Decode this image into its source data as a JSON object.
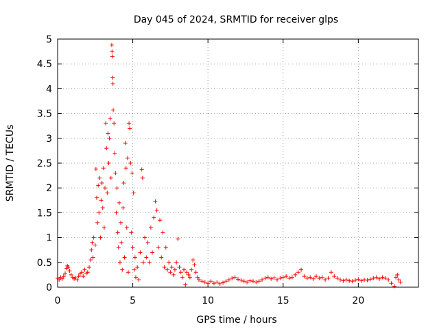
{
  "chart_data": {
    "type": "scatter",
    "title": "Day 045 of 2024, SRMTID for receiver glps",
    "xlabel": "GPS time / hours",
    "ylabel": "SRMTID / TECUs",
    "xlim": [
      0,
      24
    ],
    "ylim": [
      0,
      5
    ],
    "xticks": [
      0,
      5,
      10,
      15,
      20
    ],
    "xtick_labels": [
      "0",
      "5",
      "10",
      "15",
      "20"
    ],
    "yticks": [
      0,
      0.5,
      1,
      1.5,
      2,
      2.5,
      3,
      3.5,
      4,
      4.5,
      5
    ],
    "ytick_labels": [
      "0",
      "0.5",
      "1",
      "1.5",
      "2",
      "2.5",
      "3",
      "3.5",
      "4",
      "4.5",
      "5"
    ],
    "grid": true,
    "marker": "+",
    "series_color": "#ff0000",
    "series": [
      {
        "name": "SRMTID",
        "points": [
          [
            0.0,
            0.18
          ],
          [
            0.1,
            0.15
          ],
          [
            0.2,
            0.2
          ],
          [
            0.3,
            0.17
          ],
          [
            0.4,
            0.22
          ],
          [
            0.5,
            0.28
          ],
          [
            0.6,
            0.38
          ],
          [
            0.65,
            0.43
          ],
          [
            0.7,
            0.4
          ],
          [
            0.8,
            0.33
          ],
          [
            0.9,
            0.25
          ],
          [
            1.0,
            0.2
          ],
          [
            1.1,
            0.17
          ],
          [
            1.2,
            0.19
          ],
          [
            1.3,
            0.15
          ],
          [
            1.4,
            0.22
          ],
          [
            1.5,
            0.27
          ],
          [
            1.6,
            0.3
          ],
          [
            1.7,
            0.22
          ],
          [
            1.8,
            0.35
          ],
          [
            1.9,
            0.28
          ],
          [
            2.0,
            0.3
          ],
          [
            2.1,
            0.4
          ],
          [
            2.2,
            0.55
          ],
          [
            2.25,
            0.75
          ],
          [
            2.3,
            0.9
          ],
          [
            2.35,
            0.6
          ],
          [
            2.4,
            1.0
          ],
          [
            2.5,
            0.85
          ],
          [
            2.55,
            2.38
          ],
          [
            2.6,
            1.8
          ],
          [
            2.65,
            1.3
          ],
          [
            2.7,
            2.05
          ],
          [
            2.75,
            1.5
          ],
          [
            2.8,
            2.2
          ],
          [
            2.85,
            1.0
          ],
          [
            2.9,
            1.75
          ],
          [
            2.95,
            2.1
          ],
          [
            3.0,
            1.6
          ],
          [
            3.05,
            2.4
          ],
          [
            3.1,
            1.2
          ],
          [
            3.15,
            2.0
          ],
          [
            3.2,
            3.3
          ],
          [
            3.25,
            2.8
          ],
          [
            3.3,
            1.9
          ],
          [
            3.35,
            3.1
          ],
          [
            3.4,
            2.5
          ],
          [
            3.45,
            3.0
          ],
          [
            3.5,
            3.4
          ],
          [
            3.55,
            2.2
          ],
          [
            3.6,
            4.88
          ],
          [
            3.62,
            4.75
          ],
          [
            3.64,
            4.65
          ],
          [
            3.66,
            4.22
          ],
          [
            3.68,
            4.1
          ],
          [
            3.7,
            3.57
          ],
          [
            3.75,
            3.3
          ],
          [
            3.8,
            2.7
          ],
          [
            3.85,
            2.3
          ],
          [
            3.9,
            1.5
          ],
          [
            3.95,
            2.0
          ],
          [
            4.0,
            1.1
          ],
          [
            4.05,
            0.8
          ],
          [
            4.1,
            1.7
          ],
          [
            4.15,
            0.5
          ],
          [
            4.2,
            1.3
          ],
          [
            4.25,
            0.9
          ],
          [
            4.3,
            0.35
          ],
          [
            4.35,
            1.6
          ],
          [
            4.4,
            2.1
          ],
          [
            4.45,
            0.6
          ],
          [
            4.5,
            2.9
          ],
          [
            4.55,
            2.4
          ],
          [
            4.6,
            1.2
          ],
          [
            4.65,
            2.6
          ],
          [
            4.7,
            0.3
          ],
          [
            4.75,
            3.3
          ],
          [
            4.8,
            3.2
          ],
          [
            4.85,
            2.5
          ],
          [
            4.9,
            1.1
          ],
          [
            4.95,
            2.3
          ],
          [
            5.0,
            0.8
          ],
          [
            5.05,
            1.9
          ],
          [
            5.1,
            0.35
          ],
          [
            5.15,
            0.6
          ],
          [
            5.2,
            0.2
          ],
          [
            5.3,
            0.4
          ],
          [
            5.4,
            0.15
          ],
          [
            5.5,
            0.7
          ],
          [
            5.6,
            2.37
          ],
          [
            5.65,
            2.2
          ],
          [
            5.7,
            0.5
          ],
          [
            5.8,
            1.0
          ],
          [
            5.9,
            0.6
          ],
          [
            6.0,
            0.9
          ],
          [
            6.1,
            0.5
          ],
          [
            6.2,
            1.2
          ],
          [
            6.3,
            0.7
          ],
          [
            6.4,
            1.4
          ],
          [
            6.5,
            1.73
          ],
          [
            6.6,
            1.55
          ],
          [
            6.7,
            0.8
          ],
          [
            6.8,
            1.35
          ],
          [
            6.9,
            0.6
          ],
          [
            7.0,
            1.1
          ],
          [
            7.1,
            0.4
          ],
          [
            7.2,
            0.8
          ],
          [
            7.3,
            0.35
          ],
          [
            7.4,
            0.5
          ],
          [
            7.5,
            0.3
          ],
          [
            7.6,
            0.4
          ],
          [
            7.7,
            0.25
          ],
          [
            7.8,
            0.35
          ],
          [
            7.9,
            0.5
          ],
          [
            8.0,
            0.97
          ],
          [
            8.1,
            0.4
          ],
          [
            8.2,
            0.3
          ],
          [
            8.3,
            0.2
          ],
          [
            8.4,
            0.35
          ],
          [
            8.5,
            0.05
          ],
          [
            8.6,
            0.3
          ],
          [
            8.7,
            0.25
          ],
          [
            8.8,
            0.2
          ],
          [
            8.9,
            0.35
          ],
          [
            9.0,
            0.55
          ],
          [
            9.1,
            0.45
          ],
          [
            9.2,
            0.3
          ],
          [
            9.3,
            0.2
          ],
          [
            9.4,
            0.15
          ],
          [
            9.6,
            0.12
          ],
          [
            9.8,
            0.1
          ],
          [
            10.0,
            0.08
          ],
          [
            10.2,
            0.12
          ],
          [
            10.4,
            0.08
          ],
          [
            10.6,
            0.1
          ],
          [
            10.8,
            0.07
          ],
          [
            11.0,
            0.09
          ],
          [
            11.2,
            0.12
          ],
          [
            11.4,
            0.15
          ],
          [
            11.6,
            0.18
          ],
          [
            11.8,
            0.2
          ],
          [
            12.0,
            0.16
          ],
          [
            12.2,
            0.14
          ],
          [
            12.4,
            0.12
          ],
          [
            12.6,
            0.1
          ],
          [
            12.8,
            0.13
          ],
          [
            13.0,
            0.12
          ],
          [
            13.2,
            0.1
          ],
          [
            13.4,
            0.12
          ],
          [
            13.6,
            0.15
          ],
          [
            13.8,
            0.18
          ],
          [
            14.0,
            0.2
          ],
          [
            14.2,
            0.17
          ],
          [
            14.4,
            0.19
          ],
          [
            14.6,
            0.15
          ],
          [
            14.8,
            0.18
          ],
          [
            15.0,
            0.2
          ],
          [
            15.2,
            0.22
          ],
          [
            15.4,
            0.18
          ],
          [
            15.6,
            0.2
          ],
          [
            15.8,
            0.25
          ],
          [
            16.0,
            0.3
          ],
          [
            16.2,
            0.35
          ],
          [
            16.4,
            0.22
          ],
          [
            16.6,
            0.18
          ],
          [
            16.8,
            0.2
          ],
          [
            17.0,
            0.17
          ],
          [
            17.2,
            0.22
          ],
          [
            17.4,
            0.18
          ],
          [
            17.6,
            0.2
          ],
          [
            17.8,
            0.15
          ],
          [
            18.0,
            0.18
          ],
          [
            18.2,
            0.3
          ],
          [
            18.4,
            0.22
          ],
          [
            18.6,
            0.18
          ],
          [
            18.8,
            0.15
          ],
          [
            19.0,
            0.13
          ],
          [
            19.2,
            0.15
          ],
          [
            19.4,
            0.13
          ],
          [
            19.6,
            0.12
          ],
          [
            19.8,
            0.14
          ],
          [
            20.0,
            0.16
          ],
          [
            20.2,
            0.13
          ],
          [
            20.4,
            0.15
          ],
          [
            20.6,
            0.14
          ],
          [
            20.8,
            0.16
          ],
          [
            21.0,
            0.18
          ],
          [
            21.2,
            0.2
          ],
          [
            21.4,
            0.17
          ],
          [
            21.6,
            0.2
          ],
          [
            21.8,
            0.18
          ],
          [
            22.0,
            0.15
          ],
          [
            22.2,
            0.08
          ],
          [
            22.4,
            0.02
          ],
          [
            22.5,
            0.2
          ],
          [
            22.6,
            0.25
          ],
          [
            22.7,
            0.15
          ],
          [
            22.8,
            0.1
          ]
        ]
      }
    ]
  }
}
